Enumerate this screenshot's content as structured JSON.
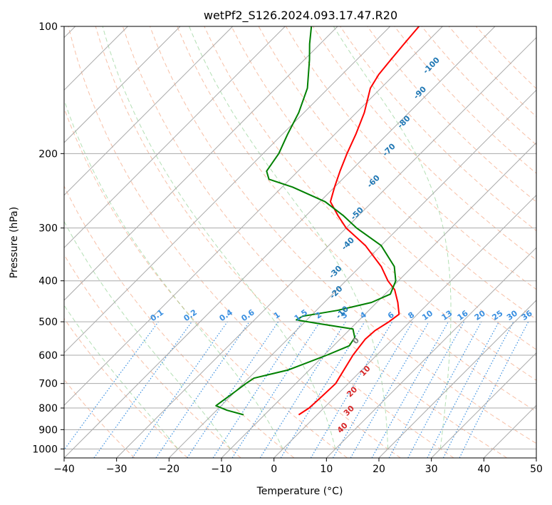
{
  "chart_data": {
    "type": "line",
    "title": "wetPf2_S126.2024.093.17.47.R20",
    "xlabel": "Temperature (°C)",
    "ylabel": "Pressure (hPa)",
    "xlim": [
      -40,
      50
    ],
    "ylim": [
      1050,
      100
    ],
    "y_scale": "log",
    "skew": true,
    "grid": true,
    "x_ticks": [
      -40,
      -30,
      -20,
      -10,
      0,
      10,
      20,
      30,
      40,
      50
    ],
    "y_ticks": [
      100,
      200,
      300,
      400,
      500,
      600,
      700,
      800,
      900,
      1000
    ],
    "series": [
      {
        "color": "#ff0000",
        "values": [
          {
            "p": 830,
            "t": -3.5
          },
          {
            "p": 800,
            "t": -2.8
          },
          {
            "p": 760,
            "t": -2.6
          },
          {
            "p": 700,
            "t": -2.4
          },
          {
            "p": 680,
            "t": -2.8
          },
          {
            "p": 600,
            "t": -4.5
          },
          {
            "p": 550,
            "t": -5.2
          },
          {
            "p": 525,
            "t": -5.0
          },
          {
            "p": 500,
            "t": -4.0
          },
          {
            "p": 480,
            "t": -3.5
          },
          {
            "p": 450,
            "t": -6.0
          },
          {
            "p": 420,
            "t": -9.0
          },
          {
            "p": 400,
            "t": -12.0
          },
          {
            "p": 370,
            "t": -16.0
          },
          {
            "p": 330,
            "t": -23.0
          },
          {
            "p": 300,
            "t": -30.0
          },
          {
            "p": 280,
            "t": -34.0
          },
          {
            "p": 260,
            "t": -38.0
          },
          {
            "p": 240,
            "t": -40.0
          },
          {
            "p": 220,
            "t": -42.0
          },
          {
            "p": 200,
            "t": -44.0
          },
          {
            "p": 180,
            "t": -46.0
          },
          {
            "p": 160,
            "t": -48.5
          },
          {
            "p": 140,
            "t": -52.0
          },
          {
            "p": 130,
            "t": -53.0
          },
          {
            "p": 120,
            "t": -53.5
          },
          {
            "p": 110,
            "t": -54.0
          },
          {
            "p": 100,
            "t": -54.5
          }
        ]
      },
      {
        "color": "#008000",
        "values": [
          {
            "p": 830,
            "t": -14.0
          },
          {
            "p": 810,
            "t": -18.0
          },
          {
            "p": 790,
            "t": -21.0
          },
          {
            "p": 760,
            "t": -20.5
          },
          {
            "p": 730,
            "t": -20.0
          },
          {
            "p": 700,
            "t": -19.5
          },
          {
            "p": 680,
            "t": -19.0
          },
          {
            "p": 650,
            "t": -14.0
          },
          {
            "p": 600,
            "t": -9.5
          },
          {
            "p": 570,
            "t": -7.0
          },
          {
            "p": 545,
            "t": -7.5
          },
          {
            "p": 520,
            "t": -9.5
          },
          {
            "p": 505,
            "t": -17.0
          },
          {
            "p": 495,
            "t": -22.0
          },
          {
            "p": 485,
            "t": -21.5
          },
          {
            "p": 470,
            "t": -16.0
          },
          {
            "p": 450,
            "t": -11.0
          },
          {
            "p": 430,
            "t": -9.0
          },
          {
            "p": 400,
            "t": -10.5
          },
          {
            "p": 370,
            "t": -13.5
          },
          {
            "p": 330,
            "t": -20.0
          },
          {
            "p": 300,
            "t": -28.0
          },
          {
            "p": 280,
            "t": -33.0
          },
          {
            "p": 260,
            "t": -39.0
          },
          {
            "p": 240,
            "t": -48.0
          },
          {
            "p": 230,
            "t": -54.0
          },
          {
            "p": 220,
            "t": -56.0
          },
          {
            "p": 200,
            "t": -57.0
          },
          {
            "p": 180,
            "t": -59.0
          },
          {
            "p": 160,
            "t": -61.0
          },
          {
            "p": 140,
            "t": -64.0
          },
          {
            "p": 120,
            "t": -69.0
          },
          {
            "p": 110,
            "t": -72.0
          },
          {
            "p": 100,
            "t": -75.0
          }
        ]
      }
    ],
    "dry_adiabats": [
      -30,
      -20,
      -10,
      0,
      10,
      20,
      30,
      40,
      50,
      60,
      70,
      80,
      90,
      100,
      110,
      120,
      130,
      140,
      150,
      160,
      170
    ],
    "moist_adiabats": [
      -20,
      -10,
      0,
      10,
      20,
      30
    ],
    "mixing_ratio_lines": [
      0.1,
      0.2,
      0.4,
      0.6,
      1,
      1.5,
      2,
      3,
      4,
      6,
      8,
      10,
      13,
      16,
      20,
      25,
      30,
      36
    ],
    "mixing_ratio_labels": [
      "0.1",
      "0.2",
      "0.4",
      "0.6",
      "1",
      "1.5",
      "2",
      "3",
      "4",
      "6",
      "8",
      "10",
      "13",
      "16",
      "20",
      "25",
      "30",
      "36"
    ],
    "tw_labels": [
      {
        "text": "-100",
        "p": 125,
        "t": -44.0,
        "color": "#1f77b4"
      },
      {
        "text": "-90",
        "p": 145,
        "t": -41.0,
        "color": "#1f77b4"
      },
      {
        "text": "-80",
        "p": 170,
        "t": -38.5,
        "color": "#1f77b4"
      },
      {
        "text": "-70",
        "p": 198,
        "t": -36.0,
        "color": "#1f77b4"
      },
      {
        "text": "-60",
        "p": 235,
        "t": -33.0,
        "color": "#1f77b4"
      },
      {
        "text": "-50",
        "p": 280,
        "t": -30.0,
        "color": "#1f77b4"
      },
      {
        "text": "-40",
        "p": 330,
        "t": -26.0,
        "color": "#1f77b4"
      },
      {
        "text": "-30",
        "p": 385,
        "t": -23.0,
        "color": "#1f77b4"
      },
      {
        "text": "-20",
        "p": 430,
        "t": -19.0,
        "color": "#1f77b4"
      },
      {
        "text": "-10",
        "p": 480,
        "t": -14.0,
        "color": "#1f77b4"
      },
      {
        "text": "0",
        "p": 560,
        "t": -6.0,
        "color": "#808080"
      },
      {
        "text": "10",
        "p": 660,
        "t": 1.5,
        "color": "#d62728"
      },
      {
        "text": "20",
        "p": 740,
        "t": 3.0,
        "color": "#d62728"
      },
      {
        "text": "30",
        "p": 820,
        "t": 6.0,
        "color": "#d62728"
      },
      {
        "text": "40",
        "p": 900,
        "t": 8.0,
        "color": "#d62728"
      }
    ]
  }
}
